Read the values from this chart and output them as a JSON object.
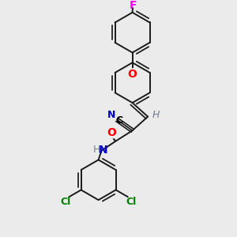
{
  "background_color": "#ebebeb",
  "atom_colors": {
    "F": "#ff00ff",
    "O": "#ff0000",
    "N": "#0000cd",
    "C": "#000000",
    "Cl": "#008000",
    "H": "#708090",
    "CN_N": "#0000cd",
    "CN_C": "#000000"
  },
  "bond_color": "#1a1a1a",
  "bond_width": 1.4
}
